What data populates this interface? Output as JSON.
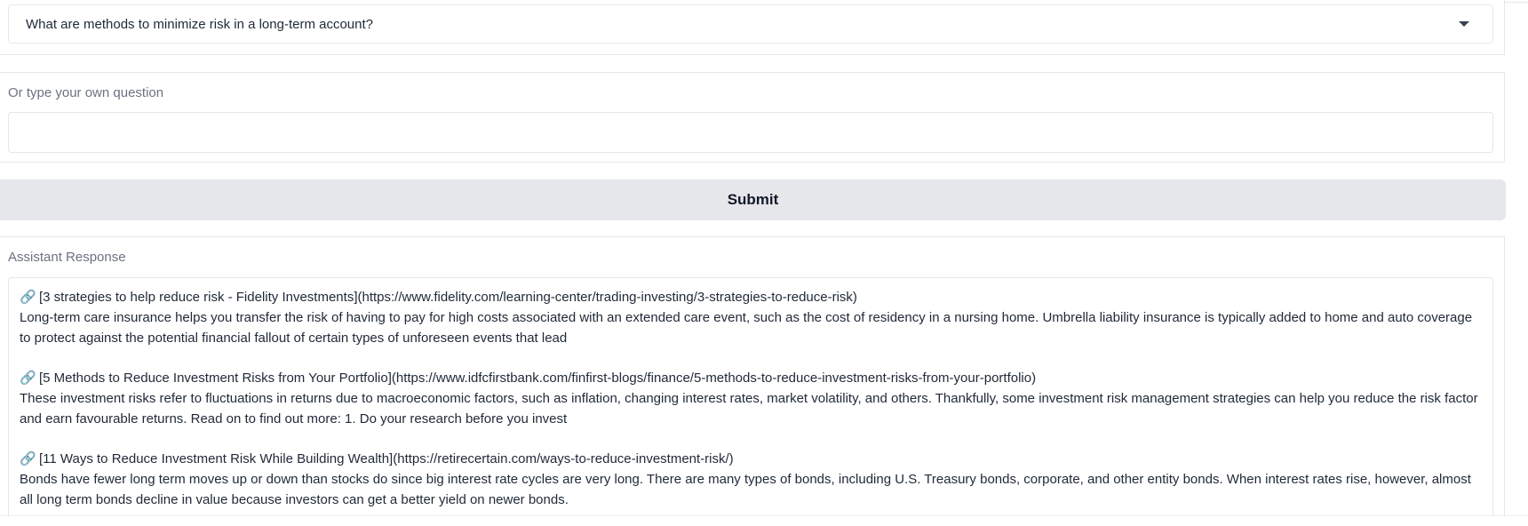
{
  "question_select": {
    "selected": "What are methods to minimize risk in a long-term account?"
  },
  "custom_question": {
    "label": "Or type your own question",
    "value": "",
    "placeholder": ""
  },
  "submit": {
    "label": "Submit"
  },
  "response": {
    "label": "Assistant Response",
    "entries": [
      {
        "title": "[3 strategies to help reduce risk - Fidelity Investments](https://www.fidelity.com/learning-center/trading-investing/3-strategies-to-reduce-risk)",
        "body": "Long-term care insurance helps you transfer the risk of having to pay for high costs associated with an extended care event, such as the cost of residency in a nursing home. Umbrella liability insurance is typically added to home and auto coverage to protect against the potential financial fallout of certain types of unforeseen events that lead"
      },
      {
        "title": "[5 Methods to Reduce Investment Risks from Your Portfolio](https://www.idfcfirstbank.com/finfirst-blogs/finance/5-methods-to-reduce-investment-risks-from-your-portfolio)",
        "body": "These investment risks refer to fluctuations in returns due to macroeconomic factors, such as inflation, changing interest rates, market volatility, and others. Thankfully, some investment risk management strategies can help you reduce the risk factor and earn favourable returns. Read on to find out more: 1. Do your research before you invest"
      },
      {
        "title": "[11 Ways to Reduce Investment Risk While Building Wealth](https://retirecertain.com/ways-to-reduce-investment-risk/)",
        "body": "Bonds have fewer long term moves up or down than stocks do since big interest rate cycles are very long. There are many types of bonds, including U.S. Treasury bonds, corporate, and other entity bonds. When interest rates rise, however, almost all long term bonds decline in value because investors can get a better yield on newer bonds."
      }
    ]
  },
  "icons": {
    "link": "link-icon",
    "dropdown": "chevron-down-icon"
  }
}
